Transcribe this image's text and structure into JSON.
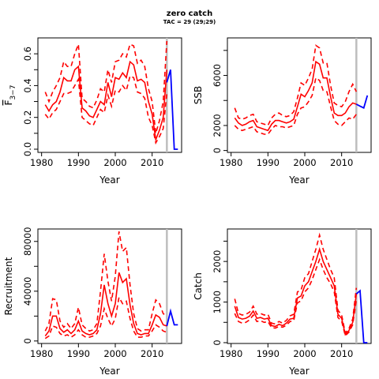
{
  "title": "zero catch",
  "subtitle": "TAC = 29 (29;29)",
  "colors": {
    "estimate": "#ff0000",
    "projection": "#0000ff",
    "last_year_line": "#bebebe"
  },
  "chart_data": [
    {
      "type": "line",
      "ylabel": "F",
      "ylabel_subscript": "3−7",
      "xlabel": "Year",
      "xlim": [
        1979,
        2018
      ],
      "ylim": [
        -0.02,
        0.7
      ],
      "xticks": [
        1980,
        1990,
        2000,
        2010
      ],
      "yticks": [
        0.0,
        0.1,
        0.2,
        0.3,
        0.4,
        0.5,
        0.6
      ],
      "ytick_labels": [
        "0.0",
        "",
        "0.2",
        "",
        "0.4",
        "",
        "0.6"
      ],
      "vline": 2014,
      "estimate": {
        "x": [
          1981,
          1982,
          1983,
          1984,
          1985,
          1986,
          1987,
          1988,
          1989,
          1990,
          1991,
          1992,
          1993,
          1994,
          1995,
          1996,
          1997,
          1998,
          1999,
          2000,
          2001,
          2002,
          2003,
          2004,
          2005,
          2006,
          2007,
          2008,
          2009,
          2010,
          2011,
          2012,
          2013,
          2014
        ],
        "mid": [
          0.28,
          0.24,
          0.28,
          0.3,
          0.36,
          0.45,
          0.43,
          0.43,
          0.5,
          0.52,
          0.26,
          0.24,
          0.21,
          0.2,
          0.25,
          0.3,
          0.28,
          0.42,
          0.33,
          0.45,
          0.44,
          0.48,
          0.45,
          0.55,
          0.53,
          0.43,
          0.44,
          0.42,
          0.3,
          0.22,
          0.06,
          0.12,
          0.2,
          0.5
        ],
        "low": [
          0.22,
          0.19,
          0.23,
          0.25,
          0.3,
          0.35,
          0.35,
          0.36,
          0.4,
          0.44,
          0.2,
          0.18,
          0.16,
          0.15,
          0.2,
          0.25,
          0.23,
          0.34,
          0.27,
          0.37,
          0.36,
          0.4,
          0.37,
          0.46,
          0.45,
          0.36,
          0.35,
          0.32,
          0.2,
          0.15,
          0.04,
          0.08,
          0.13,
          0.35
        ],
        "high": [
          0.36,
          0.3,
          0.36,
          0.4,
          0.45,
          0.55,
          0.52,
          0.52,
          0.6,
          0.66,
          0.32,
          0.3,
          0.27,
          0.26,
          0.31,
          0.38,
          0.36,
          0.5,
          0.42,
          0.55,
          0.56,
          0.6,
          0.58,
          0.66,
          0.65,
          0.54,
          0.56,
          0.52,
          0.38,
          0.3,
          0.1,
          0.18,
          0.3,
          0.68
        ]
      },
      "projection": {
        "x": [
          2014,
          2015,
          2016,
          2017
        ],
        "y": [
          0.42,
          0.5,
          0.0,
          0.0
        ]
      }
    },
    {
      "type": "line",
      "ylabel": "SSB",
      "xlabel": "Year",
      "xlim": [
        1979,
        2018
      ],
      "ylim": [
        -150,
        9000
      ],
      "xticks": [
        1980,
        1990,
        2000,
        2010
      ],
      "yticks": [
        0,
        2000,
        4000,
        6000,
        8000
      ],
      "ytick_labels": [
        "0",
        "2000",
        "",
        "6000",
        ""
      ],
      "vline": 2014,
      "estimate": {
        "x": [
          1981,
          1982,
          1983,
          1984,
          1985,
          1986,
          1987,
          1988,
          1989,
          1990,
          1991,
          1992,
          1993,
          1994,
          1995,
          1996,
          1997,
          1998,
          1999,
          2000,
          2001,
          2002,
          2003,
          2004,
          2005,
          2006,
          2007,
          2008,
          2009,
          2010,
          2011,
          2012,
          2013,
          2014
        ],
        "mid": [
          2600,
          2200,
          2000,
          2100,
          2300,
          2400,
          1900,
          1800,
          1700,
          1600,
          2100,
          2400,
          2400,
          2300,
          2200,
          2300,
          2500,
          3500,
          4500,
          4300,
          4800,
          5400,
          7100,
          6900,
          5800,
          5800,
          4300,
          3000,
          2800,
          2800,
          3000,
          3500,
          3800,
          3700
        ],
        "low": [
          2000,
          1700,
          1600,
          1700,
          1800,
          1900,
          1500,
          1400,
          1300,
          1300,
          1700,
          2000,
          1900,
          1900,
          1800,
          1900,
          2000,
          2900,
          3400,
          3500,
          3900,
          4400,
          5800,
          5600,
          4800,
          4700,
          3500,
          2400,
          2100,
          2000,
          2300,
          2600,
          2500,
          2900
        ],
        "high": [
          3400,
          2600,
          2500,
          2600,
          2800,
          2900,
          2300,
          2200,
          2100,
          2000,
          2600,
          2900,
          3000,
          2800,
          2700,
          2800,
          3100,
          4200,
          5400,
          5200,
          5800,
          6500,
          8400,
          8200,
          7000,
          7000,
          5200,
          3800,
          3600,
          3500,
          3900,
          4700,
          5300,
          4700
        ]
      },
      "projection": {
        "x": [
          2014,
          2015,
          2016,
          2017
        ],
        "y": [
          3700,
          3550,
          3400,
          4400
        ]
      }
    },
    {
      "type": "line",
      "ylabel": "Recruitment",
      "xlabel": "Year",
      "xlim": [
        1979,
        2018
      ],
      "ylim": [
        -2000,
        90000
      ],
      "xticks": [
        1980,
        1990,
        2000,
        2010
      ],
      "yticks": [
        0,
        20000,
        40000,
        60000,
        80000
      ],
      "ytick_labels": [
        "0",
        "",
        "40000",
        "",
        "80000"
      ],
      "vline": 2014,
      "estimate": {
        "x": [
          1981,
          1982,
          1983,
          1984,
          1985,
          1986,
          1987,
          1988,
          1989,
          1990,
          1991,
          1992,
          1993,
          1994,
          1995,
          1996,
          1997,
          1998,
          1999,
          2000,
          2001,
          2002,
          2003,
          2004,
          2005,
          2006,
          2007,
          2008,
          2009,
          2010,
          2011,
          2012,
          2013,
          2014
        ],
        "mid": [
          4000,
          8000,
          20000,
          20000,
          10000,
          7000,
          9000,
          6000,
          9000,
          16000,
          8000,
          6000,
          5000,
          6000,
          9000,
          22000,
          45000,
          30000,
          20000,
          30000,
          55000,
          47000,
          50000,
          29000,
          14000,
          6000,
          5000,
          6000,
          6000,
          13000,
          21000,
          19000,
          13000,
          12000
        ],
        "low": [
          2000,
          4000,
          12000,
          11000,
          6000,
          4000,
          5000,
          3000,
          5000,
          9000,
          5000,
          3000,
          3000,
          4000,
          6000,
          12000,
          26000,
          18000,
          12000,
          18000,
          35000,
          30000,
          32000,
          18000,
          8000,
          3000,
          3000,
          4000,
          4000,
          8000,
          13000,
          11000,
          8000,
          7000
        ],
        "high": [
          8000,
          14000,
          34000,
          33000,
          16000,
          11000,
          14000,
          10000,
          14000,
          27000,
          13000,
          10000,
          8000,
          9000,
          14000,
          40000,
          70000,
          48000,
          32000,
          52000,
          88000,
          72000,
          75000,
          45000,
          22000,
          10000,
          8000,
          9000,
          9000,
          22000,
          33000,
          30000,
          22000,
          20000
        ]
      },
      "projection": {
        "x": [
          2014,
          2015,
          2016,
          2017
        ],
        "y": [
          12000,
          24000,
          13000,
          13000
        ]
      }
    },
    {
      "type": "line",
      "ylabel": "Catch",
      "xlabel": "Year",
      "xlim": [
        1979,
        2018
      ],
      "ylim": [
        -20,
        2800
      ],
      "xticks": [
        1980,
        1990,
        2000,
        2010
      ],
      "yticks": [
        0,
        500,
        1000,
        1500,
        2000,
        2500
      ],
      "ytick_labels": [
        "0",
        "",
        "1000",
        "",
        "2000",
        ""
      ],
      "vline": 2014,
      "estimate": {
        "x": [
          1981,
          1982,
          1983,
          1984,
          1985,
          1986,
          1987,
          1988,
          1989,
          1990,
          1991,
          1992,
          1993,
          1994,
          1995,
          1996,
          1997,
          1998,
          1999,
          2000,
          2001,
          2002,
          2003,
          2004,
          2005,
          2006,
          2007,
          2008,
          2009,
          2010,
          2011,
          2012,
          2013,
          2014
        ],
        "mid": [
          900,
          620,
          580,
          600,
          650,
          780,
          600,
          620,
          580,
          600,
          420,
          400,
          450,
          420,
          480,
          580,
          600,
          1100,
          1150,
          1400,
          1500,
          1750,
          2000,
          2300,
          2000,
          1800,
          1600,
          1400,
          700,
          600,
          200,
          300,
          500,
          1200
        ],
        "low": [
          720,
          520,
          480,
          500,
          560,
          680,
          520,
          540,
          500,
          520,
          370,
          360,
          400,
          380,
          430,
          520,
          540,
          980,
          1030,
          1250,
          1350,
          1550,
          1800,
          2050,
          1800,
          1600,
          1450,
          1250,
          620,
          530,
          170,
          260,
          440,
          1050
        ],
        "high": [
          1080,
          720,
          680,
          700,
          750,
          900,
          700,
          720,
          680,
          700,
          480,
          460,
          520,
          480,
          550,
          660,
          700,
          1250,
          1300,
          1600,
          1700,
          2000,
          2300,
          2650,
          2300,
          2050,
          1800,
          1600,
          800,
          680,
          240,
          350,
          580,
          1350
        ]
      },
      "projection": {
        "x": [
          2014,
          2015,
          2016,
          2017
        ],
        "y": [
          1200,
          1280,
          0,
          0
        ]
      }
    }
  ]
}
